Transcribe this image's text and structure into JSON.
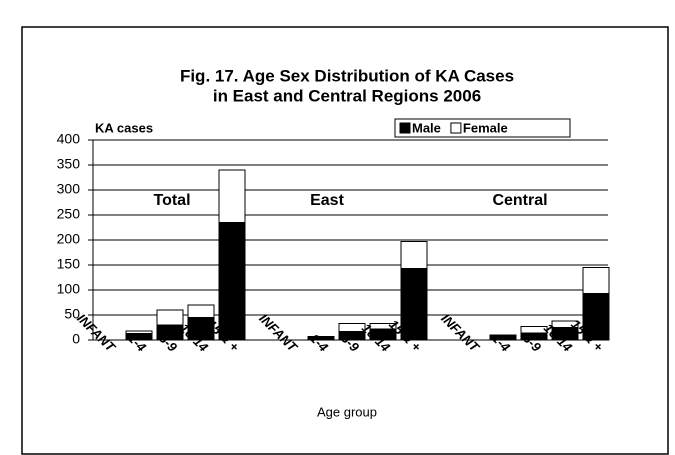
{
  "chart_data": {
    "type": "stacked_bar",
    "title": [
      "Fig. 17.  Age Sex Distribution of KA Cases",
      "in East and Central Regions  2006"
    ],
    "y_label": "KA cases",
    "x_label": "Age group",
    "group_labels": [
      "Total",
      "East",
      "Central"
    ],
    "categories": [
      "INFANT",
      "1-4",
      "5-9",
      "10-14",
      "15 & +",
      "INFANT",
      "1-4",
      "5-9",
      "10-14",
      "15 & +",
      "INFANT",
      "1-4",
      "5-9",
      "10-14",
      "15 & +"
    ],
    "series": [
      {
        "name": "Male",
        "color": "#000000",
        "values": [
          0,
          13,
          30,
          45,
          235,
          0,
          5,
          17,
          22,
          143,
          0,
          8,
          14,
          25,
          93
        ]
      },
      {
        "name": "Female",
        "color": "#ffffff",
        "values": [
          0,
          5,
          30,
          25,
          105,
          0,
          2,
          16,
          11,
          54,
          0,
          2,
          13,
          13,
          52
        ]
      }
    ],
    "ylim": [
      0,
      400
    ],
    "yticks": [
      0,
      50,
      100,
      150,
      200,
      250,
      300,
      350,
      400
    ],
    "grid": true
  }
}
